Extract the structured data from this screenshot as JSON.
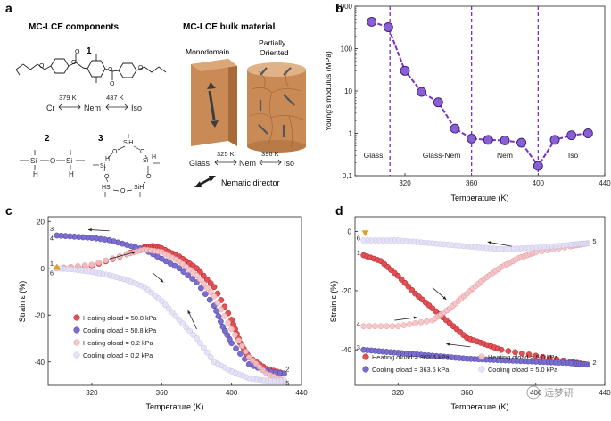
{
  "panel_a": {
    "label": "a",
    "components_title": "MC-LCE components",
    "bulk_title": "MC-LCE bulk material",
    "compound_labels": [
      "1",
      "2",
      "3"
    ],
    "phase_seq_1": {
      "cr": "Cr",
      "t1": "379 K",
      "nem": "Nem",
      "t2": "437 K",
      "iso": "Iso"
    },
    "siloxane_labels": {
      "si": "Si",
      "o": "O",
      "h": "H",
      "hsi": "HSi",
      "sih": "SiH"
    },
    "monodomain": "Monodomain",
    "partially": "Partially",
    "oriented": "Oriented",
    "phase_seq_bulk": {
      "glass": "Glass",
      "t1": "325 K",
      "nem": "Nem",
      "t2": "396 K",
      "iso": "Iso"
    },
    "director": "Nematic director"
  },
  "colors": {
    "purple": "#7b2fc4",
    "heating": "#d93036",
    "cooling": "#6a5bbf",
    "heating_light": "#f0b6b8",
    "cooling_light": "#d7d3ef",
    "triangle": "#e0a020",
    "cyl": "#c98a55",
    "slab": "#c07a42"
  },
  "chart_data": [
    {
      "panel": "b",
      "type": "line",
      "title": "",
      "xlabel": "Temperature (K)",
      "ylabel": "Young's modulus (MPa)",
      "yscale": "log",
      "xlim": [
        290,
        440
      ],
      "ylim": [
        0.1,
        1000
      ],
      "xticks": [
        "320",
        "360",
        "400",
        "440"
      ],
      "yticks": [
        "0,1",
        "1",
        "10",
        "100",
        "1000"
      ],
      "x": [
        300,
        310,
        320,
        330,
        340,
        350,
        360,
        370,
        380,
        390,
        400,
        410,
        420,
        430
      ],
      "values": [
        430,
        320,
        30,
        9.5,
        5.4,
        1.3,
        0.75,
        0.7,
        0.68,
        0.6,
        0.17,
        0.7,
        0.9,
        1.0
      ],
      "phase_boundaries": [
        311,
        360,
        400
      ],
      "regions": [
        "Glass",
        "Glass-Nem",
        "Nem",
        "Iso"
      ]
    },
    {
      "panel": "c",
      "type": "scatter",
      "xlabel": "Temperature (K)",
      "ylabel": "Strain ε (%)",
      "xlim": [
        295,
        440
      ],
      "ylim": [
        -50,
        22
      ],
      "xticks": [
        "320",
        "360",
        "400",
        "440"
      ],
      "yticks": [
        "20",
        "0",
        "-20",
        "-40"
      ],
      "legend_texts": [
        "Heating σload = 50.8 kPa",
        "Cooling σload = 50.8 kPa",
        "Heating σload = 0.2 kPa",
        "Cooling σload = 0.2 kPa"
      ],
      "point_labels": [
        "1",
        "2",
        "3",
        "4",
        "5",
        "6"
      ],
      "series": [
        {
          "name": "Heating 50.8 kPa",
          "x": [
            300,
            320,
            340,
            350,
            355,
            360,
            370,
            380,
            390,
            400,
            405,
            410,
            420,
            430
          ],
          "y": [
            0,
            1,
            6,
            9,
            9.5,
            8.5,
            5,
            0,
            -8,
            -22,
            -32,
            -38,
            -43,
            -45
          ]
        },
        {
          "name": "Cooling 50.8 kPa",
          "x": [
            430,
            420,
            410,
            400,
            395,
            390,
            380,
            370,
            360,
            350,
            340,
            330,
            320,
            310,
            300
          ],
          "y": [
            -45,
            -44,
            -41,
            -32,
            -25,
            -16,
            -6,
            0,
            4,
            8,
            10,
            12,
            13,
            13.5,
            14
          ]
        },
        {
          "name": "Heating 0.2 kPa",
          "x": [
            300,
            320,
            340,
            350,
            360,
            370,
            380,
            390,
            400,
            410,
            420,
            430
          ],
          "y": [
            0,
            1.5,
            6,
            8,
            7,
            3,
            -3,
            -12,
            -26,
            -38,
            -45,
            -48
          ]
        },
        {
          "name": "Cooling 0.2 kPa",
          "x": [
            430,
            420,
            410,
            400,
            390,
            380,
            370,
            360,
            350,
            340,
            330,
            320,
            310,
            300
          ],
          "y": [
            -48,
            -48,
            -47,
            -44,
            -40,
            -30,
            -22,
            -14,
            -8,
            -5,
            -3,
            -1.5,
            -0.5,
            0
          ]
        }
      ]
    },
    {
      "panel": "d",
      "type": "scatter",
      "xlabel": "Temperature (K)",
      "ylabel": "Strain ε (%)",
      "xlim": [
        295,
        440
      ],
      "ylim": [
        -52,
        5
      ],
      "xticks": [
        "320",
        "360",
        "400",
        "440"
      ],
      "yticks": [
        "0",
        "-20",
        "-40"
      ],
      "legend_texts": [
        "Heating σload = 363.5 kPa",
        "Cooling σload = 363.5 kPa",
        "Heating σload = 5.0 kPa",
        "Cooling σload = 5.0 kPa"
      ],
      "point_labels": [
        "1",
        "2",
        "3",
        "4",
        "5",
        "6"
      ],
      "series": [
        {
          "name": "Heating 363.5 kPa",
          "x": [
            300,
            310,
            320,
            330,
            340,
            350,
            360,
            370,
            380,
            400,
            420,
            430
          ],
          "y": [
            -8,
            -10,
            -15,
            -21,
            -26,
            -31,
            -36,
            -38,
            -40,
            -42,
            -44,
            -45
          ]
        },
        {
          "name": "Cooling 363.5 kPa",
          "x": [
            430,
            420,
            400,
            380,
            360,
            340,
            320,
            300
          ],
          "y": [
            -45,
            -44.5,
            -44,
            -43.5,
            -43,
            -42,
            -41,
            -40
          ]
        },
        {
          "name": "Heating 5.0 kPa",
          "x": [
            300,
            320,
            340,
            350,
            360,
            370,
            380,
            390,
            400,
            420,
            430
          ],
          "y": [
            -32,
            -32,
            -30,
            -26,
            -21,
            -16,
            -12,
            -9,
            -7,
            -5,
            -4
          ]
        },
        {
          "name": "Cooling 5.0 kPa",
          "x": [
            430,
            420,
            400,
            380,
            360,
            340,
            320,
            300
          ],
          "y": [
            -4,
            -4.5,
            -5.5,
            -6,
            -5,
            -4,
            -3,
            -3
          ]
        }
      ]
    }
  ],
  "watermark": "远梦研"
}
